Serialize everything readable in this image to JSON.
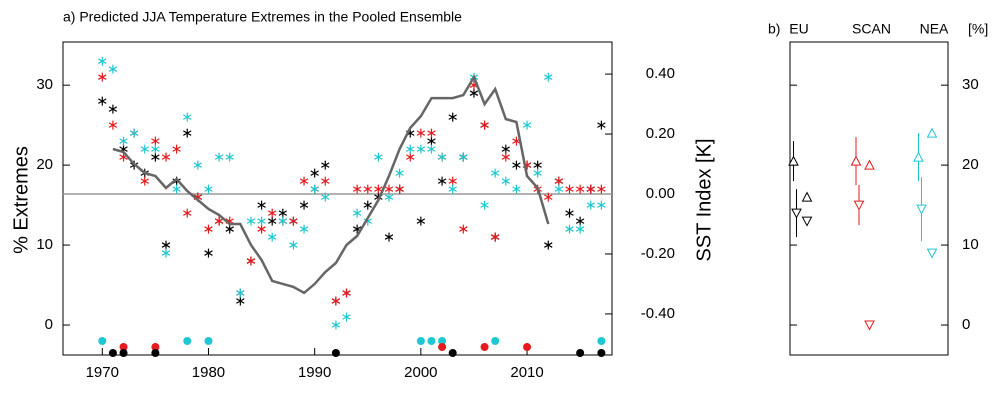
{
  "chart_data": [
    {
      "type": "scatter",
      "title": "a) Predicted JJA Temperature Extremes in the Pooled Ensemble",
      "ylabel": "% Extremes",
      "y2label": "SST Index [K]",
      "x": [
        1970,
        1971,
        1972,
        1973,
        1974,
        1975,
        1976,
        1977,
        1978,
        1979,
        1980,
        1981,
        1982,
        1983,
        1984,
        1985,
        1986,
        1987,
        1988,
        1989,
        1990,
        1991,
        1992,
        1993,
        1994,
        1995,
        1996,
        1997,
        1998,
        1999,
        2000,
        2001,
        2002,
        2003,
        2004,
        2005,
        2006,
        2007,
        2008,
        2009,
        2010,
        2011,
        2012,
        2013,
        2014,
        2015,
        2016,
        2017
      ],
      "xlim": [
        1966.3,
        2018
      ],
      "xticks": [
        1970,
        1980,
        1990,
        2000,
        2010
      ],
      "ylim": [
        -3.75,
        35.4
      ],
      "yticks": [
        0,
        10,
        20,
        30
      ],
      "y2lim": [
        -0.537,
        0.507
      ],
      "y2ticks": [
        {
          "value": 0.4,
          "label": "0.40"
        },
        {
          "value": 0.2,
          "label": "0.20"
        },
        {
          "value": 0,
          "label": "0.00"
        },
        {
          "value": -0.2,
          "label": "-0.20"
        },
        {
          "value": -0.4,
          "label": "-0.40"
        }
      ],
      "zero_line_color": "#999999",
      "series": [
        {
          "color": "#000000",
          "marker": "asterisk",
          "values": [
            28,
            27,
            22,
            20,
            19,
            21,
            10,
            18,
            24,
            16,
            9,
            13,
            12,
            3,
            8,
            15,
            13,
            14,
            13,
            15,
            19,
            20,
            3,
            4,
            12,
            15,
            16,
            11,
            17,
            24,
            13,
            23,
            18,
            26,
            21,
            29,
            25,
            11,
            22,
            20,
            20,
            20,
            10,
            18,
            14,
            13,
            17,
            25
          ]
        },
        {
          "color": "#e8191c",
          "marker": "asterisk",
          "values": [
            31,
            25,
            21,
            24,
            18,
            23,
            21,
            22,
            14,
            16,
            12,
            13,
            13,
            4,
            8,
            12,
            14,
            13,
            13,
            18,
            17,
            18,
            3,
            4,
            17,
            17,
            17,
            17,
            17,
            21,
            24,
            24,
            21,
            18,
            12,
            30,
            25,
            11,
            21,
            23,
            20,
            17,
            16,
            18,
            17,
            17,
            17,
            17
          ]
        },
        {
          "color": "#1ec8d2",
          "marker": "asterisk",
          "values": [
            33,
            32,
            23,
            24,
            22,
            22,
            9,
            17,
            26,
            20,
            17,
            21,
            21,
            4,
            13,
            13,
            11,
            13,
            10,
            12,
            17,
            16,
            0,
            1,
            14,
            13,
            21,
            16,
            19,
            22,
            22,
            22,
            21,
            17,
            21,
            31,
            15,
            19,
            18,
            17,
            25,
            19,
            31,
            17,
            12,
            12,
            15,
            15
          ]
        },
        {
          "color": "#1ec8d2",
          "marker": "dot",
          "values": [
            -2,
            null,
            null,
            null,
            null,
            null,
            null,
            null,
            -2,
            null,
            -2,
            null,
            null,
            null,
            null,
            null,
            null,
            null,
            null,
            null,
            null,
            null,
            null,
            null,
            null,
            null,
            null,
            null,
            null,
            null,
            -2,
            -2,
            -2,
            null,
            null,
            null,
            null,
            -2,
            null,
            null,
            null,
            null,
            null,
            null,
            null,
            null,
            null,
            -2
          ]
        },
        {
          "color": "#e8191c",
          "marker": "dot",
          "values": [
            null,
            null,
            -2.75,
            null,
            null,
            -2.75,
            null,
            null,
            null,
            null,
            null,
            null,
            null,
            null,
            null,
            null,
            null,
            null,
            null,
            null,
            null,
            null,
            null,
            null,
            null,
            null,
            null,
            null,
            null,
            null,
            null,
            null,
            -2.75,
            null,
            null,
            null,
            -2.75,
            null,
            null,
            null,
            -2.75,
            null,
            null,
            null,
            null,
            null,
            null,
            null
          ]
        },
        {
          "color": "#000000",
          "marker": "dot",
          "values": [
            null,
            -3.5,
            -3.5,
            null,
            null,
            -3.5,
            null,
            null,
            null,
            null,
            null,
            null,
            null,
            null,
            null,
            null,
            null,
            null,
            null,
            null,
            null,
            null,
            -3.5,
            null,
            null,
            null,
            null,
            null,
            null,
            null,
            null,
            null,
            null,
            -3.5,
            null,
            null,
            null,
            null,
            null,
            null,
            null,
            null,
            null,
            null,
            null,
            -3.5,
            null,
            -3.5
          ]
        },
        {
          "color": "#666666",
          "marker": "line",
          "axis": "y2",
          "values": [
            null,
            0.15,
            0.14,
            0.1,
            0.07,
            0.06,
            0.02,
            0.05,
            0.01,
            -0.02,
            -0.05,
            -0.07,
            -0.1,
            -0.1,
            -0.17,
            -0.22,
            -0.29,
            -0.3,
            -0.31,
            -0.33,
            -0.3,
            -0.26,
            -0.23,
            -0.17,
            -0.14,
            -0.08,
            -0.02,
            0.06,
            0.15,
            0.22,
            0.26,
            0.32,
            0.32,
            0.32,
            0.33,
            0.39,
            0.3,
            0.35,
            0.25,
            0.24,
            0.06,
            0.02,
            -0.1,
            null,
            null,
            null,
            null,
            null
          ]
        }
      ]
    },
    {
      "type": "errorbar",
      "title": "b)",
      "unit": "[%]",
      "categories": [
        "EU",
        "SCAN",
        "NEA"
      ],
      "colors": [
        "#000000",
        "#e8191c",
        "#1ec8d2"
      ],
      "ylim": [
        -3.75,
        35.4
      ],
      "yticks": [
        0,
        10,
        20,
        30
      ],
      "warm_mean": [
        20.5,
        20.5,
        21
      ],
      "warm_low": [
        18,
        17.5,
        18
      ],
      "warm_high": [
        23,
        23.5,
        24
      ],
      "cold_mean": [
        14,
        15,
        14.5
      ],
      "cold_low": [
        11,
        12.5,
        10.5
      ],
      "cold_high": [
        17,
        17.5,
        18.5
      ],
      "warm_obs": [
        16,
        20,
        24
      ],
      "cold_obs": [
        13,
        0,
        9
      ]
    }
  ]
}
